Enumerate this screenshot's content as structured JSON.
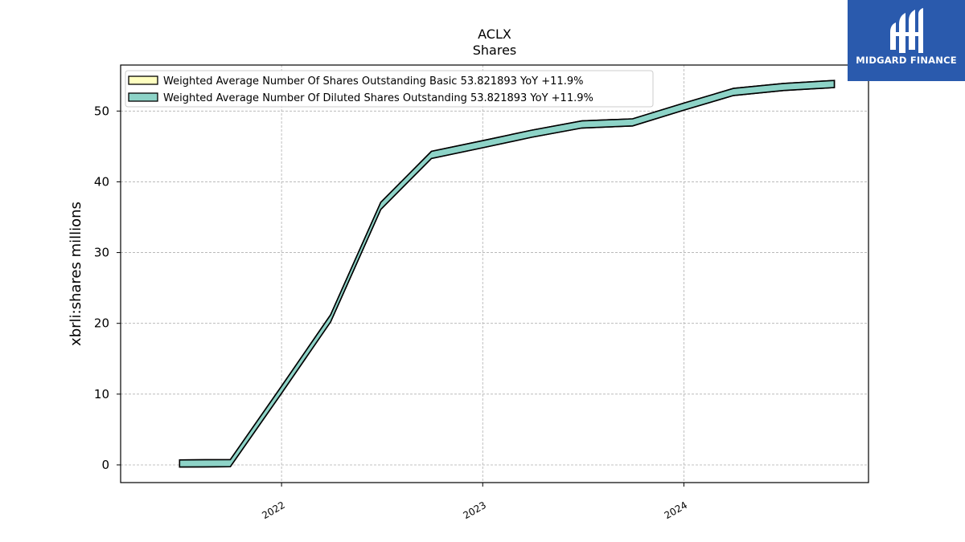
{
  "chart_data": {
    "type": "area",
    "title": "ACLX",
    "subtitle": "Shares",
    "xlabel": "",
    "ylabel": "xbrli:shares millions",
    "xlim": [
      "2021-03-15",
      "2024-12-01"
    ],
    "ylim": [
      -2.5,
      56.5
    ],
    "yticks": [
      0,
      10,
      20,
      30,
      40,
      50
    ],
    "xticks": [
      "2022",
      "2023",
      "2024"
    ],
    "grid": true,
    "legend_position": "top-left",
    "x": [
      "2021-06-30",
      "2021-09-30",
      "2021-12-31",
      "2022-03-31",
      "2022-06-30",
      "2022-09-30",
      "2022-12-31",
      "2023-03-31",
      "2023-06-30",
      "2023-09-30",
      "2023-12-31",
      "2024-03-31",
      "2024-06-30",
      "2024-09-30"
    ],
    "series": [
      {
        "name": "Weighted Average Number Of Shares Outstanding Basic",
        "legend": "Weighted Average Number Of Shares Outstanding Basic  53.821893 YoY +11.9%",
        "color": "#ffffc0",
        "values": [
          0.2,
          0.25,
          10.5,
          20.7,
          36.6,
          43.8,
          45.3,
          46.8,
          48.1,
          48.4,
          50.6,
          52.7,
          53.4,
          53.821893
        ]
      },
      {
        "name": "Weighted Average Number Of Diluted Shares Outstanding",
        "legend": "Weighted Average Number Of Diluted Shares Outstanding  53.821893 YoY +11.9%",
        "color": "#8dd3c7",
        "values": [
          0.2,
          0.25,
          10.5,
          20.7,
          36.6,
          43.8,
          45.3,
          46.8,
          48.1,
          48.4,
          50.6,
          52.7,
          53.4,
          53.821893
        ]
      }
    ]
  },
  "logo": {
    "text": "MIDGARD FINANCE",
    "background": "#2a5aad"
  }
}
